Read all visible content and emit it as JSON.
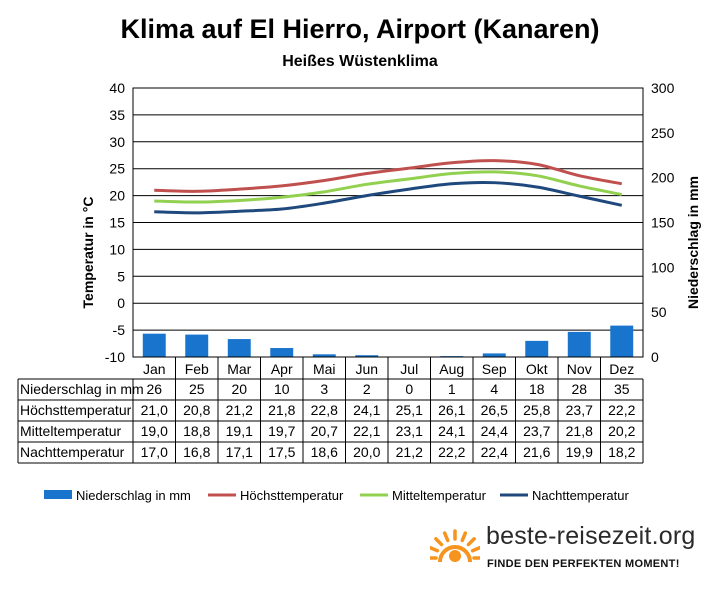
{
  "chart_data": {
    "type": "bar",
    "title": "Klima auf El Hierro, Airport (Kanaren)",
    "subtitle": "Heißes Wüstenklima",
    "categories": [
      "Jan",
      "Feb",
      "Mar",
      "Apr",
      "Mai",
      "Jun",
      "Jul",
      "Aug",
      "Sep",
      "Okt",
      "Nov",
      "Dez"
    ],
    "y_left": {
      "label": "Temperatur in °C",
      "min": -10,
      "max": 40,
      "step": 5,
      "ticks": [
        "40",
        "35",
        "30",
        "25",
        "20",
        "15",
        "10",
        "5",
        "0",
        "-5",
        "-10"
      ]
    },
    "y_right": {
      "label": "Niederschlag in mm",
      "min": 0,
      "max": 300,
      "step": 50,
      "ticks": [
        "300",
        "250",
        "200",
        "150",
        "100",
        "50",
        "0"
      ]
    },
    "series": [
      {
        "name": "Niederschlag in mm",
        "kind": "bar",
        "axis": "right",
        "color": "#1874cd",
        "values": [
          26,
          25,
          20,
          10,
          3,
          2,
          0,
          1,
          4,
          18,
          28,
          35
        ],
        "labels": [
          "26",
          "25",
          "20",
          "10",
          "3",
          "2",
          "0",
          "1",
          "4",
          "18",
          "28",
          "35"
        ]
      },
      {
        "name": "Höchsttemperatur",
        "kind": "line",
        "axis": "left",
        "color": "#c0504d",
        "values": [
          21.0,
          20.8,
          21.2,
          21.8,
          22.8,
          24.1,
          25.1,
          26.1,
          26.5,
          25.8,
          23.7,
          22.2
        ],
        "labels": [
          "21,0",
          "20,8",
          "21,2",
          "21,8",
          "22,8",
          "24,1",
          "25,1",
          "26,1",
          "26,5",
          "25,8",
          "23,7",
          "22,2"
        ]
      },
      {
        "name": "Mitteltemperatur",
        "kind": "line",
        "axis": "left",
        "color": "#92d050",
        "values": [
          19.0,
          18.8,
          19.1,
          19.7,
          20.7,
          22.1,
          23.1,
          24.1,
          24.4,
          23.7,
          21.8,
          20.2
        ],
        "labels": [
          "19,0",
          "18,8",
          "19,1",
          "19,7",
          "20,7",
          "22,1",
          "23,1",
          "24,1",
          "24,4",
          "23,7",
          "21,8",
          "20,2"
        ]
      },
      {
        "name": "Nachttemperatur",
        "kind": "line",
        "axis": "left",
        "color": "#1f497d",
        "values": [
          17.0,
          16.8,
          17.1,
          17.5,
          18.6,
          20.0,
          21.2,
          22.2,
          22.4,
          21.6,
          19.9,
          18.2
        ],
        "labels": [
          "17,0",
          "16,8",
          "17,1",
          "17,5",
          "18,6",
          "20,0",
          "21,2",
          "22,2",
          "22,4",
          "21,6",
          "19,9",
          "18,2"
        ]
      }
    ],
    "legend_position": "bottom",
    "grid": true
  },
  "branding": {
    "site": "beste-reisezeit.org",
    "slogan": "FINDE DEN PERFEKTEN MOMENT!",
    "icon": "sun-icon",
    "accent_color": "#f7941d"
  }
}
